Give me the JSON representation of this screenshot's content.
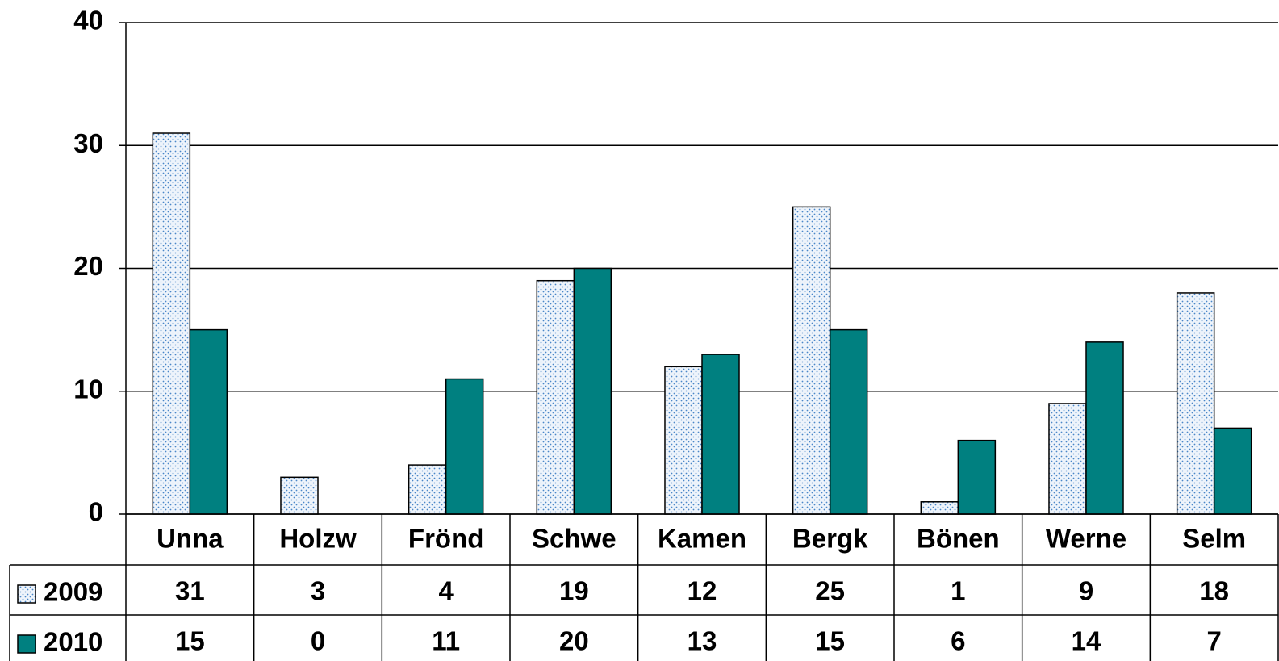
{
  "chart_data": {
    "type": "bar",
    "categories": [
      "Unna",
      "Holzw",
      "Frönd",
      "Schwe",
      "Kamen",
      "Bergk",
      "Bönen",
      "Werne",
      "Selm"
    ],
    "series": [
      {
        "name": "2009",
        "color": "#4a86c8",
        "pattern": "dotted",
        "values": [
          31,
          3,
          4,
          19,
          12,
          25,
          1,
          9,
          18
        ]
      },
      {
        "name": "2010",
        "color": "#008080",
        "values": [
          15,
          0,
          11,
          20,
          13,
          15,
          6,
          14,
          7
        ]
      }
    ],
    "ylim": [
      0,
      40
    ],
    "yticks": [
      0,
      10,
      20,
      30,
      40
    ],
    "grid": true,
    "data_table": true
  }
}
